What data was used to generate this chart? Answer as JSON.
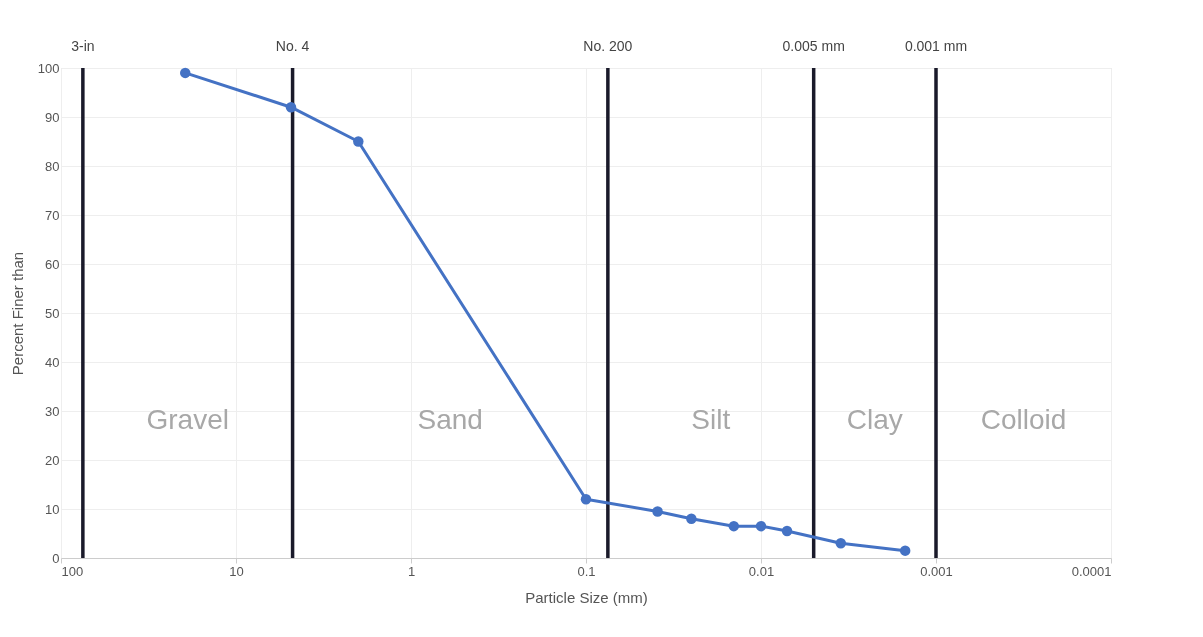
{
  "chart_data": {
    "type": "line",
    "xlabel": "Particle Size (mm)",
    "ylabel": "Percent Finer than",
    "x": [
      19.5,
      4.85,
      2.0,
      0.1,
      0.039,
      0.025,
      0.0143,
      0.01,
      0.0071,
      0.0035,
      0.0015
    ],
    "series": [
      {
        "color": "#4472c4",
        "values": [
          99,
          92,
          85,
          12,
          9.5,
          8,
          6.5,
          6.5,
          5.5,
          3,
          1.5
        ]
      }
    ],
    "log": "x",
    "xlim": [
      100,
      0.0001
    ],
    "xticks": [
      100,
      10,
      1,
      0.1,
      0.01,
      0.001,
      0.0001
    ],
    "ylim": [
      0,
      100
    ],
    "yticks": [
      0,
      10,
      20,
      30,
      40,
      50,
      60,
      70,
      80,
      90,
      100
    ],
    "grid": true,
    "marker": "circle",
    "line_style": "solid",
    "ref_lines": [
      {
        "axis": "x",
        "value": 75,
        "label": "3-in",
        "color": "#1a1a2a"
      },
      {
        "axis": "x",
        "value": 4.75,
        "label": "No. 4",
        "color": "#1a1a2a"
      },
      {
        "axis": "x",
        "value": 0.075,
        "label": "No. 200",
        "color": "#1a1a2a"
      },
      {
        "axis": "x",
        "value": 0.005,
        "label": "0.005 mm",
        "color": "#1a1a2a"
      },
      {
        "axis": "x",
        "value": 0.001,
        "label": "0.001 mm",
        "color": "#1a1a2a"
      }
    ],
    "annotations": [
      "Gravel",
      "Sand",
      "Silt",
      "Clay",
      "Colloid"
    ]
  }
}
